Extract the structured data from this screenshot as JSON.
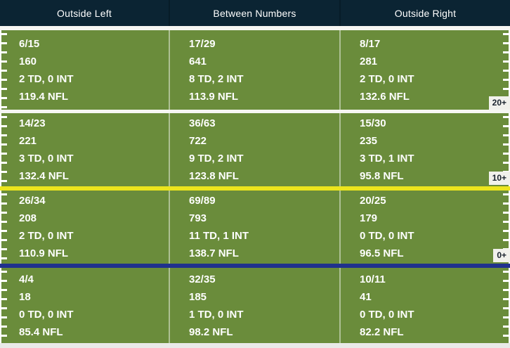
{
  "chart_data": {
    "type": "table",
    "columns": [
      "Outside Left",
      "Between Numbers",
      "Outside Right"
    ],
    "rows": [
      {
        "marker": "20+",
        "cells": [
          {
            "comp_att": "6/15",
            "yards": "160",
            "td_int": "2 TD, 0 INT",
            "rating": "119.4 NFL"
          },
          {
            "comp_att": "17/29",
            "yards": "641",
            "td_int": "8 TD, 2 INT",
            "rating": "113.9 NFL"
          },
          {
            "comp_att": "8/17",
            "yards": "281",
            "td_int": "2 TD, 0 INT",
            "rating": "132.6 NFL"
          }
        ]
      },
      {
        "marker": "10+",
        "cells": [
          {
            "comp_att": "14/23",
            "yards": "221",
            "td_int": "3 TD, 0 INT",
            "rating": "132.4 NFL"
          },
          {
            "comp_att": "36/63",
            "yards": "722",
            "td_int": "9 TD, 2 INT",
            "rating": "123.8 NFL"
          },
          {
            "comp_att": "15/30",
            "yards": "235",
            "td_int": "3 TD, 1 INT",
            "rating": "95.8 NFL"
          }
        ]
      },
      {
        "marker": "0+",
        "cells": [
          {
            "comp_att": "26/34",
            "yards": "208",
            "td_int": "2 TD, 0 INT",
            "rating": "110.9 NFL"
          },
          {
            "comp_att": "69/89",
            "yards": "793",
            "td_int": "11 TD, 1 INT",
            "rating": "138.7 NFL"
          },
          {
            "comp_att": "20/25",
            "yards": "179",
            "td_int": "0 TD, 0 INT",
            "rating": "96.5 NFL"
          }
        ]
      },
      {
        "cells": [
          {
            "comp_att": "4/4",
            "yards": "18",
            "td_int": "0 TD, 0 INT",
            "rating": "85.4 NFL"
          },
          {
            "comp_att": "32/35",
            "yards": "185",
            "td_int": "1 TD, 0 INT",
            "rating": "98.2 NFL"
          },
          {
            "comp_att": "10/11",
            "yards": "41",
            "td_int": "0 TD, 0 INT",
            "rating": "82.2 NFL"
          }
        ]
      }
    ]
  },
  "colors": {
    "header_bg": "#0b2433",
    "header_divider": "#071c28",
    "field_green": "#6a8c3b",
    "hash_white": "#ffffff",
    "gap_white": "#f6f6f3",
    "first_down_yellow": "#ece51d",
    "scrimmage_blue": "#20318d",
    "badge_bg": "#f1f1ec",
    "badge_text": "#1a232e",
    "stat_text": "#ffffff"
  }
}
